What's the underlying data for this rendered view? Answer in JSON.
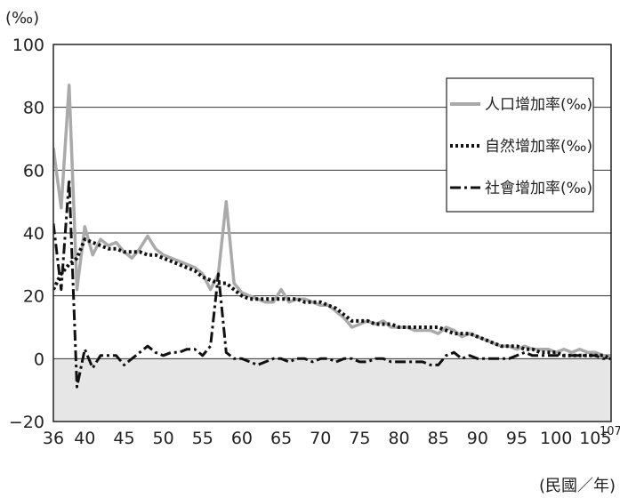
{
  "chart_data": {
    "type": "line",
    "y_unit": "(‰)",
    "x_unit": "(民國／年)",
    "x_last_tick": "107",
    "xlim": [
      36,
      107
    ],
    "ylim": [
      -20,
      100
    ],
    "grid": "horizontal",
    "legend_position": "top-right",
    "x_ticks": [
      36,
      40,
      45,
      50,
      55,
      60,
      65,
      70,
      75,
      80,
      85,
      90,
      95,
      100,
      105
    ],
    "y_ticks": [
      -20,
      0,
      20,
      40,
      60,
      80,
      100
    ],
    "x_tick_labels": [
      "36",
      "40",
      "45",
      "50",
      "55",
      "60",
      "65",
      "70",
      "75",
      "80",
      "85",
      "90",
      "95",
      "100",
      "105"
    ],
    "y_tick_labels": [
      "−20",
      "0",
      "20",
      "40",
      "60",
      "80",
      "100"
    ],
    "series": [
      {
        "name": "人口增加率(‰)",
        "color": "#aaaaaa",
        "style": "solid",
        "x": [
          36,
          37,
          38,
          39,
          40,
          41,
          42,
          43,
          44,
          45,
          46,
          47,
          48,
          49,
          50,
          51,
          52,
          53,
          54,
          55,
          56,
          57,
          58,
          59,
          60,
          61,
          62,
          63,
          64,
          65,
          66,
          67,
          68,
          69,
          70,
          71,
          72,
          73,
          74,
          75,
          76,
          77,
          78,
          79,
          80,
          81,
          82,
          83,
          84,
          85,
          86,
          87,
          88,
          89,
          90,
          91,
          92,
          93,
          94,
          95,
          96,
          97,
          98,
          99,
          100,
          101,
          102,
          103,
          104,
          105,
          106,
          107
        ],
        "values": [
          67,
          48,
          87,
          22,
          42,
          33,
          38,
          36,
          37,
          34,
          32,
          35,
          39,
          35,
          33,
          32,
          31,
          30,
          29,
          27,
          22,
          27,
          50,
          24,
          21,
          20,
          19,
          18,
          18,
          22,
          18,
          19,
          19,
          18,
          17,
          17,
          15,
          13,
          10,
          11,
          12,
          11,
          12,
          10,
          10,
          10,
          9,
          9,
          9,
          8,
          10,
          9,
          7,
          8,
          7,
          6,
          5,
          4,
          4,
          3,
          4,
          3,
          3,
          3,
          2,
          3,
          2,
          3,
          2,
          2,
          1,
          1
        ]
      },
      {
        "name": "自然增加率(‰)",
        "color": "#111111",
        "style": "dotted",
        "x": [
          36,
          37,
          38,
          39,
          40,
          41,
          42,
          43,
          44,
          45,
          46,
          47,
          48,
          49,
          50,
          51,
          52,
          53,
          54,
          55,
          56,
          57,
          58,
          59,
          60,
          61,
          62,
          63,
          64,
          65,
          66,
          67,
          68,
          69,
          70,
          71,
          72,
          73,
          74,
          75,
          76,
          77,
          78,
          79,
          80,
          81,
          82,
          83,
          84,
          85,
          86,
          87,
          88,
          89,
          90,
          91,
          92,
          93,
          94,
          95,
          96,
          97,
          98,
          99,
          100,
          101,
          102,
          103,
          104,
          105,
          106,
          107
        ],
        "values": [
          22,
          27,
          30,
          32,
          38,
          37,
          36,
          35,
          35,
          34,
          34,
          34,
          33,
          33,
          32,
          31,
          30,
          29,
          28,
          26,
          25,
          24,
          24,
          22,
          20,
          19,
          19,
          19,
          19,
          19,
          19,
          19,
          18,
          18,
          18,
          17,
          16,
          14,
          12,
          12,
          12,
          11,
          11,
          11,
          10,
          10,
          10,
          10,
          10,
          10,
          9,
          8,
          8,
          8,
          7,
          6,
          5,
          4,
          4,
          4,
          3,
          3,
          2,
          2,
          2,
          1,
          1,
          1,
          1,
          1,
          1,
          0
        ]
      },
      {
        "name": "社會增加率(‰)",
        "color": "#111111",
        "style": "dashdot",
        "x": [
          36,
          37,
          38,
          39,
          40,
          41,
          42,
          43,
          44,
          45,
          46,
          47,
          48,
          49,
          50,
          51,
          52,
          53,
          54,
          55,
          56,
          57,
          58,
          59,
          60,
          61,
          62,
          63,
          64,
          65,
          66,
          67,
          68,
          69,
          70,
          71,
          72,
          73,
          74,
          75,
          76,
          77,
          78,
          79,
          80,
          81,
          82,
          83,
          84,
          85,
          86,
          87,
          88,
          89,
          90,
          91,
          92,
          93,
          94,
          95,
          96,
          97,
          98,
          99,
          100,
          101,
          102,
          103,
          104,
          105,
          106,
          107
        ],
        "values": [
          43,
          22,
          57,
          -9,
          3,
          -3,
          1,
          1,
          1,
          -2,
          0,
          2,
          4,
          2,
          1,
          2,
          2,
          3,
          3,
          1,
          4,
          27,
          2,
          0,
          0,
          -1,
          -2,
          -1,
          0,
          0,
          -1,
          0,
          0,
          -1,
          0,
          0,
          -1,
          0,
          0,
          -1,
          -1,
          0,
          0,
          -1,
          -1,
          -1,
          -1,
          -1,
          -2,
          -2,
          1,
          2,
          0,
          1,
          0,
          0,
          0,
          0,
          0,
          1,
          2,
          1,
          1,
          1,
          1,
          1,
          1,
          1,
          1,
          1,
          0,
          0
        ]
      }
    ]
  }
}
